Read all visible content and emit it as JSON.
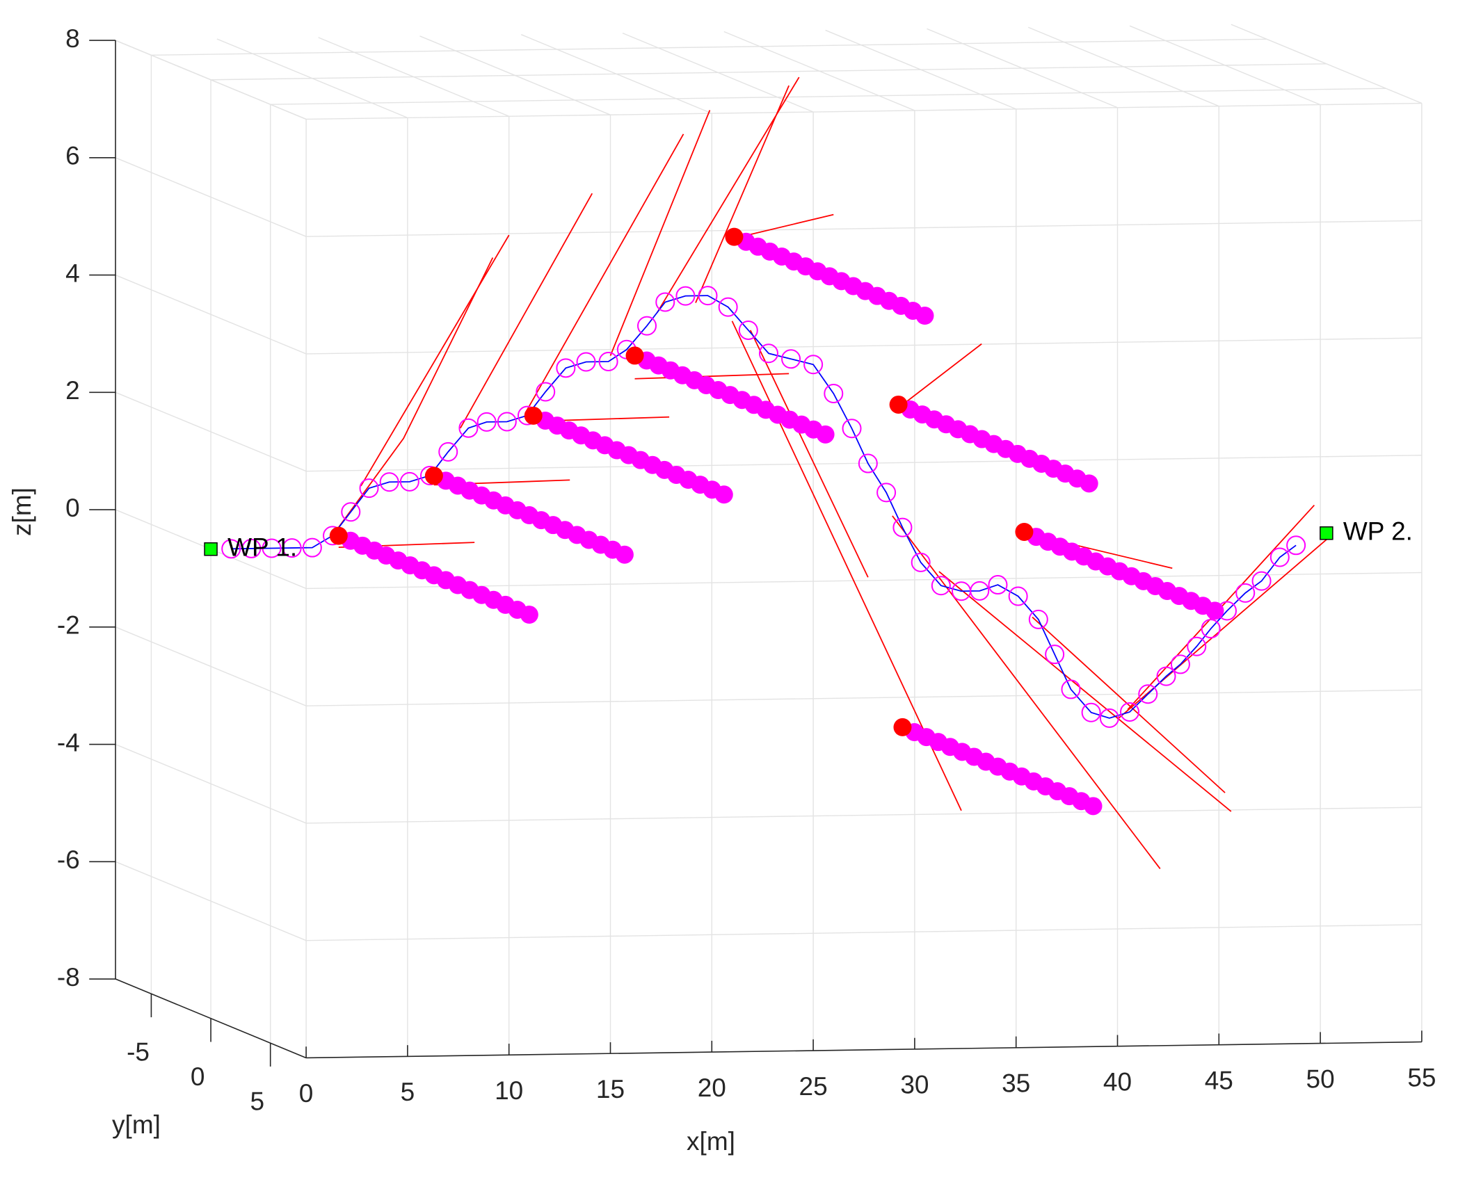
{
  "chart_data": {
    "type": "trajectory3d",
    "xlabel": "x[m]",
    "ylabel": "y[m]",
    "zlabel": "z[m]",
    "xlim": [
      0,
      55
    ],
    "ylim": [
      -8,
      8
    ],
    "zlim": [
      -8,
      8
    ],
    "xticks": [
      0,
      5,
      10,
      15,
      20,
      25,
      30,
      35,
      40,
      45,
      50,
      55
    ],
    "yticks": [
      -5,
      0,
      5
    ],
    "zticks": [
      -8,
      -6,
      -4,
      -2,
      0,
      2,
      4,
      6,
      8
    ],
    "grid": true,
    "trajectory": {
      "line_color": "#0000ff",
      "marker_color": "#ff00ff",
      "x": [
        1,
        2,
        3,
        4,
        5,
        6,
        6.9,
        7.8,
        8.8,
        9.8,
        10.8,
        11.7,
        12.7,
        13.6,
        14.6,
        15.6,
        16.5,
        17.5,
        18.5,
        19.6,
        20.5,
        21.5,
        22.4,
        23.4,
        24.5,
        25.5,
        26.5,
        27.5,
        28.6,
        29.7,
        30.7,
        31.6,
        32.4,
        33.3,
        34.1,
        35,
        36,
        37,
        37.9,
        38.8,
        39.8,
        40.8,
        41.6,
        42.4,
        43.4,
        44.3,
        45.3,
        46.2,
        47.1,
        47.8,
        48.6,
        49.3,
        50.1,
        51,
        51.8,
        52.7,
        53.5
      ],
      "y": [
        0,
        0,
        0,
        0,
        0,
        0,
        0,
        0,
        0,
        0,
        0,
        0,
        0,
        0,
        0,
        0,
        0,
        0,
        0,
        0,
        0,
        0,
        0,
        0,
        0,
        0,
        0,
        0,
        0,
        0,
        0,
        0,
        0,
        0,
        0,
        0,
        0,
        0,
        0,
        0,
        0,
        0,
        0,
        0,
        0,
        0,
        0,
        0,
        0,
        0,
        0,
        0,
        0,
        0,
        0,
        0,
        0
      ],
      "z": [
        0,
        0,
        0,
        0,
        0,
        0.2,
        0.6,
        1.0,
        1.1,
        1.1,
        1.2,
        1.6,
        2.0,
        2.1,
        2.1,
        2.2,
        2.6,
        3.0,
        3.1,
        3.1,
        3.3,
        3.7,
        4.1,
        4.2,
        4.2,
        4.0,
        3.6,
        3.2,
        3.1,
        3.0,
        2.5,
        1.9,
        1.3,
        0.8,
        0.2,
        -0.4,
        -0.8,
        -0.9,
        -0.9,
        -0.8,
        -1.0,
        -1.4,
        -2.0,
        -2.6,
        -3.0,
        -3.1,
        -3.0,
        -2.7,
        -2.4,
        -2.2,
        -1.9,
        -1.6,
        -1.3,
        -1.0,
        -0.8,
        -0.4,
        -0.2
      ]
    },
    "branches": {
      "color": "#ff0000",
      "lines": [
        {
          "x": [
            6,
            9.5,
            13.9
          ],
          "y": [
            0,
            0,
            0
          ],
          "z": [
            0.2,
            1.84,
            4.9
          ]
        },
        {
          "x": [
            7.4,
            14.7
          ],
          "y": [
            0,
            0
          ],
          "z": [
            1.04,
            5.28
          ]
        },
        {
          "x": [
            12.3,
            18.8
          ],
          "y": [
            0,
            0
          ],
          "z": [
            2.0,
            5.97
          ]
        },
        {
          "x": [
            15.5,
            23.3
          ],
          "y": [
            0,
            0
          ],
          "z": [
            2.24,
            6.96
          ]
        },
        {
          "x": [
            19.7,
            24.6
          ],
          "y": [
            0,
            0
          ],
          "z": [
            3.2,
            7.36
          ]
        },
        {
          "x": [
            22,
            29
          ],
          "y": [
            0,
            0
          ],
          "z": [
            3.92,
            7.9
          ]
        },
        {
          "x": [
            23.9,
            28.5
          ],
          "y": [
            0,
            0
          ],
          "z": [
            4.08,
            7.76
          ]
        },
        {
          "x": [
            26.6,
            32.4
          ],
          "y": [
            0,
            0
          ],
          "z": [
            3.6,
            -0.64
          ]
        },
        {
          "x": [
            25.7,
            37
          ],
          "y": [
            0,
            0
          ],
          "z": [
            3.76,
            -4.64
          ]
        },
        {
          "x": [
            33.6,
            46.8
          ],
          "y": [
            0,
            0
          ],
          "z": [
            0.4,
            -5.68
          ]
        },
        {
          "x": [
            35.9,
            50.3
          ],
          "y": [
            0,
            0
          ],
          "z": [
            -0.56,
            -4.72
          ]
        },
        {
          "x": [
            40.5,
            50
          ],
          "y": [
            0,
            0
          ],
          "z": [
            -1.36,
            -4.4
          ]
        },
        {
          "x": [
            45.2,
            54.4
          ],
          "y": [
            0,
            0
          ],
          "z": [
            -2.96,
            0.48
          ]
        },
        {
          "x": [
            44.7,
            55.1
          ],
          "y": [
            0,
            0
          ],
          "z": [
            -3.12,
            -0.08
          ]
        },
        {
          "x": [
            6.3,
            13
          ],
          "y": [
            0,
            0
          ],
          "z": [
            0,
            0.05
          ]
        },
        {
          "x": [
            11,
            17.7
          ],
          "y": [
            0,
            0
          ],
          "z": [
            1.04,
            1.09
          ]
        },
        {
          "x": [
            15.9,
            22.6
          ],
          "y": [
            0,
            0
          ],
          "z": [
            2.1,
            2.14
          ]
        },
        {
          "x": [
            20.9,
            28.5
          ],
          "y": [
            0,
            0
          ],
          "z": [
            2.8,
            2.85
          ]
        },
        {
          "x": [
            25.8,
            30.7
          ],
          "y": [
            0,
            0
          ],
          "z": [
            5.17,
            5.55
          ]
        },
        {
          "x": [
            33.9,
            38
          ],
          "y": [
            0,
            0
          ],
          "z": [
            2.24,
            3.31
          ]
        },
        {
          "x": [
            40.1,
            47.4
          ],
          "y": [
            0,
            0
          ],
          "z": [
            0.08,
            -0.56
          ]
        }
      ]
    },
    "obstacles": {
      "start_color": "#ff0000",
      "path_color": "#ff00ff",
      "y": [
        -8,
        -7,
        -6,
        -5,
        -4,
        -3,
        -2,
        -1,
        0,
        1,
        2,
        3,
        4,
        5,
        6,
        7,
        8
      ],
      "items": [
        {
          "x": 11,
          "z": -0.5
        },
        {
          "x": 15.7,
          "z": 0.5
        },
        {
          "x": 20.6,
          "z": 1.5
        },
        {
          "x": 25.6,
          "z": 2.5
        },
        {
          "x": 30.5,
          "z": 4.5
        },
        {
          "x": 38.6,
          "z": 1.6
        },
        {
          "x": 44.8,
          "z": -0.6
        },
        {
          "x": 38.8,
          "z": -3.9
        }
      ]
    },
    "waypoints": {
      "color": "#00ff00",
      "points": [
        {
          "label": "WP 1.",
          "x": 0,
          "y": 0,
          "z": 0
        },
        {
          "label": "WP 2.",
          "x": 55,
          "y": 0,
          "z": 0
        }
      ]
    }
  }
}
